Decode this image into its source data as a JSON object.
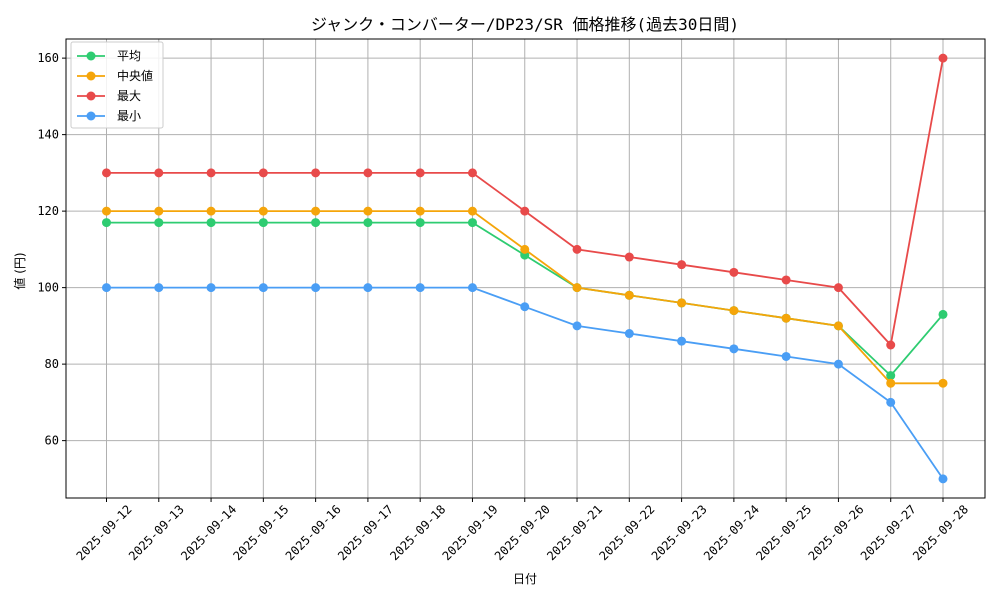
{
  "chart_data": {
    "type": "line",
    "title": "ジャンク・コンバーター/DP23/SR 価格推移(過去30日間)",
    "xlabel": "日付",
    "ylabel": "値 (円)",
    "ylim": [
      45,
      165
    ],
    "yticks": [
      60,
      80,
      100,
      120,
      140,
      160
    ],
    "grid": true,
    "legend_position": "top-left",
    "x": [
      "2025-09-12",
      "2025-09-13",
      "2025-09-14",
      "2025-09-15",
      "2025-09-16",
      "2025-09-17",
      "2025-09-18",
      "2025-09-19",
      "2025-09-20",
      "2025-09-21",
      "2025-09-22",
      "2025-09-23",
      "2025-09-24",
      "2025-09-25",
      "2025-09-26",
      "2025-09-27",
      "2025-09-28"
    ],
    "series": [
      {
        "name": "平均",
        "color": "#2ecc71",
        "values": [
          117,
          117,
          117,
          117,
          117,
          117,
          117,
          117,
          108.5,
          100,
          98,
          96,
          94,
          92,
          90,
          77,
          93
        ]
      },
      {
        "name": "中央値",
        "color": "#f5a50a",
        "values": [
          120,
          120,
          120,
          120,
          120,
          120,
          120,
          120,
          110,
          100,
          98,
          96,
          94,
          92,
          90,
          75,
          75
        ]
      },
      {
        "name": "最大",
        "color": "#e84a4a",
        "values": [
          130,
          130,
          130,
          130,
          130,
          130,
          130,
          130,
          120,
          110,
          108,
          106,
          104,
          102,
          100,
          85,
          160
        ]
      },
      {
        "name": "最小",
        "color": "#4a9ef5",
        "values": [
          100,
          100,
          100,
          100,
          100,
          100,
          100,
          100,
          95,
          90,
          88,
          86,
          84,
          82,
          80,
          70,
          50
        ]
      }
    ]
  }
}
